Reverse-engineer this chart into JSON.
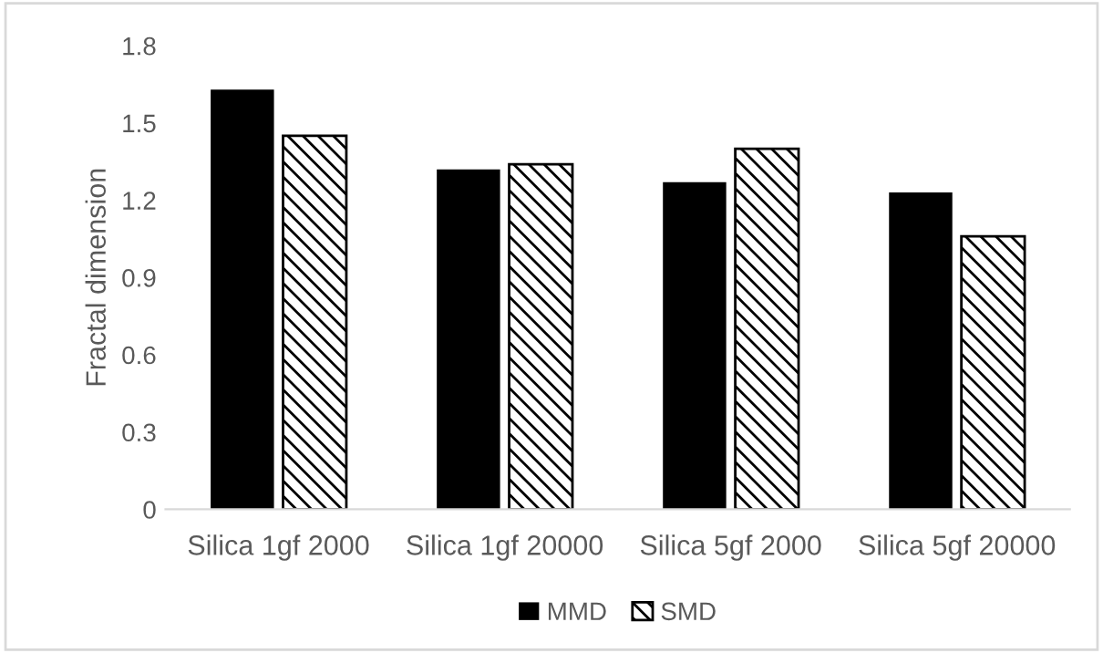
{
  "chart_data": {
    "type": "bar",
    "ylabel": "Fractal dimension",
    "categories": [
      "Silica 1gf 2000",
      "Silica 1gf 20000",
      "Silica 5gf 2000",
      "Silica 5gf 20000"
    ],
    "series": [
      {
        "name": "MMD",
        "color": "#000000",
        "values": [
          1.63,
          1.32,
          1.27,
          1.23
        ]
      },
      {
        "name": "SMD",
        "color": "#000000",
        "values": [
          1.45,
          1.34,
          1.4,
          1.06
        ]
      }
    ],
    "ylim": [
      0,
      1.8
    ],
    "yticks": [
      0,
      0.3,
      0.6,
      0.9,
      1.2,
      1.5,
      1.8
    ],
    "grid": false,
    "legend": "bottom"
  }
}
